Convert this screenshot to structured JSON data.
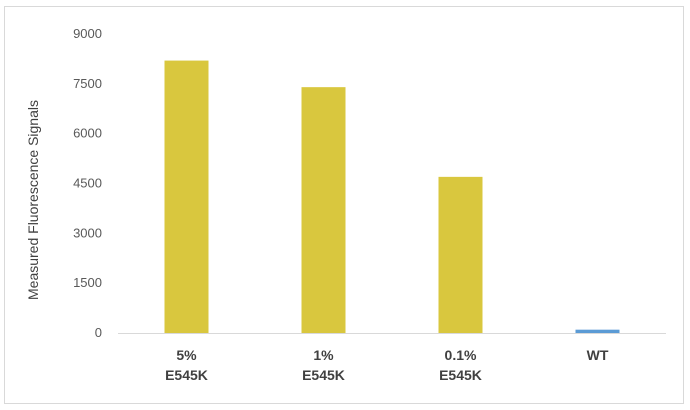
{
  "chart_data": {
    "type": "bar",
    "title": "",
    "xlabel": "",
    "ylabel": "Measured Fluorescence Signals",
    "ylim": [
      0,
      9000
    ],
    "yticks": [
      0,
      1500,
      3000,
      4500,
      6000,
      7500,
      9000
    ],
    "categories": [
      [
        "5%",
        "E545K"
      ],
      [
        "1%",
        "E545K"
      ],
      [
        "0.1%",
        "E545K"
      ],
      [
        "WT"
      ]
    ],
    "values": [
      8200,
      7400,
      4700,
      100
    ],
    "bar_colors": [
      "#d9c73e",
      "#d9c73e",
      "#d9c73e",
      "#5b9bd5"
    ],
    "grid": false,
    "legend": "none"
  }
}
